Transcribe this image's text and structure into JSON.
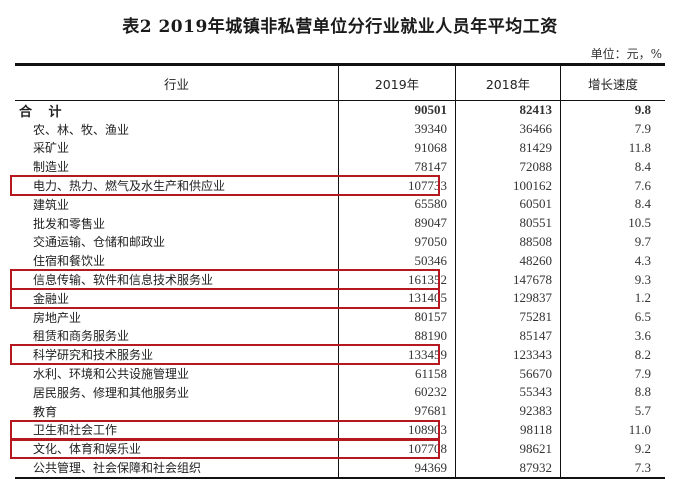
{
  "title": "表2   2019年城镇非私营单位分行业就业人员年平均工资",
  "unit": "单位：元，%",
  "headers": {
    "industry": "行业",
    "y2019": "2019年",
    "y2018": "2018年",
    "growth": "增长速度"
  },
  "total": {
    "name": "合 计",
    "y2019": "90501",
    "y2018": "82413",
    "growth": "9.8"
  },
  "rows": [
    {
      "name": "农、林、牧、渔业",
      "y2019": "39340",
      "y2018": "36466",
      "growth": "7.9",
      "highlighted": false
    },
    {
      "name": "采矿业",
      "y2019": "91068",
      "y2018": "81429",
      "growth": "11.8",
      "highlighted": false
    },
    {
      "name": "制造业",
      "y2019": "78147",
      "y2018": "72088",
      "growth": "8.4",
      "highlighted": false
    },
    {
      "name": "电力、热力、燃气及水生产和供应业",
      "y2019": "107733",
      "y2018": "100162",
      "growth": "7.6",
      "highlighted": true
    },
    {
      "name": "建筑业",
      "y2019": "65580",
      "y2018": "60501",
      "growth": "8.4",
      "highlighted": false
    },
    {
      "name": "批发和零售业",
      "y2019": "89047",
      "y2018": "80551",
      "growth": "10.5",
      "highlighted": false
    },
    {
      "name": "交通运输、仓储和邮政业",
      "y2019": "97050",
      "y2018": "88508",
      "growth": "9.7",
      "highlighted": false
    },
    {
      "name": "住宿和餐饮业",
      "y2019": "50346",
      "y2018": "48260",
      "growth": "4.3",
      "highlighted": false
    },
    {
      "name": "信息传输、软件和信息技术服务业",
      "y2019": "161352",
      "y2018": "147678",
      "growth": "9.3",
      "highlighted": true
    },
    {
      "name": "金融业",
      "y2019": "131405",
      "y2018": "129837",
      "growth": "1.2",
      "highlighted": true
    },
    {
      "name": "房地产业",
      "y2019": "80157",
      "y2018": "75281",
      "growth": "6.5",
      "highlighted": false
    },
    {
      "name": "租赁和商务服务业",
      "y2019": "88190",
      "y2018": "85147",
      "growth": "3.6",
      "highlighted": false
    },
    {
      "name": "科学研究和技术服务业",
      "y2019": "133459",
      "y2018": "123343",
      "growth": "8.2",
      "highlighted": true
    },
    {
      "name": "水利、环境和公共设施管理业",
      "y2019": "61158",
      "y2018": "56670",
      "growth": "7.9",
      "highlighted": false
    },
    {
      "name": "居民服务、修理和其他服务业",
      "y2019": "60232",
      "y2018": "55343",
      "growth": "8.8",
      "highlighted": false
    },
    {
      "name": "教育",
      "y2019": "97681",
      "y2018": "92383",
      "growth": "5.7",
      "highlighted": false
    },
    {
      "name": "卫生和社会工作",
      "y2019": "108903",
      "y2018": "98118",
      "growth": "11.0",
      "highlighted": true
    },
    {
      "name": "文化、体育和娱乐业",
      "y2019": "107708",
      "y2018": "98621",
      "growth": "9.2",
      "highlighted": true
    },
    {
      "name": "公共管理、社会保障和社会组织",
      "y2019": "94369",
      "y2018": "87932",
      "growth": "7.3",
      "highlighted": false
    }
  ],
  "colors": {
    "highlight_border": "#b5191f",
    "rule": "#111111"
  }
}
